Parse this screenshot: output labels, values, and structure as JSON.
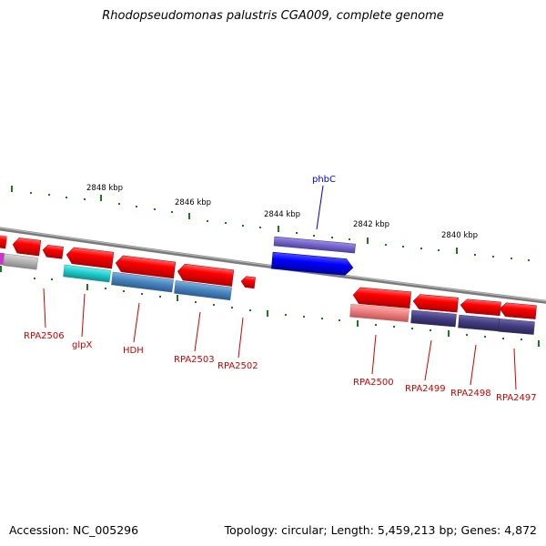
{
  "title": "Rhodopseudomonas palustris CGA009, complete genome",
  "footer": {
    "accession": "Accession: NC_005296",
    "stats": "Topology: circular; Length: 5,459,213 bp; Genes: 4,872"
  },
  "colors": {
    "backbone": "#808080",
    "forward_label": "#0000cc",
    "reverse_label": "#cc0000",
    "tick": "#1a7a1a",
    "red_gene": "#ff0000",
    "blue_gene": "#0000ff",
    "lavender_gene": "#7766cc",
    "steelblue_gene": "#4a86c0",
    "navy_gene": "#443d80",
    "cyan_gene": "#22cccc",
    "salmon_gene": "#f08080",
    "grey_gene": "#b0b0b0",
    "magenta_gene": "#cc33cc"
  },
  "scale_labels": [
    {
      "id": "2848",
      "text": "2848 kbp"
    },
    {
      "id": "2846",
      "text": "2846 kbp"
    },
    {
      "id": "2844",
      "text": "2844 kbp"
    },
    {
      "id": "2842",
      "text": "2842 kbp"
    },
    {
      "id": "2840",
      "text": "2840 kbp"
    }
  ],
  "gene_labels": [
    {
      "id": "phbC",
      "text": "phbC"
    },
    {
      "id": "RPA2506",
      "text": "RPA2506"
    },
    {
      "id": "glpX",
      "text": "glpX"
    },
    {
      "id": "HDH",
      "text": "HDH"
    },
    {
      "id": "RPA2503",
      "text": "RPA2503"
    },
    {
      "id": "RPA2502",
      "text": "RPA2502"
    },
    {
      "id": "RPA2500",
      "text": "RPA2500"
    },
    {
      "id": "RPA2499",
      "text": "RPA2499"
    },
    {
      "id": "RPA2498",
      "text": "RPA2498"
    },
    {
      "id": "RPA2497",
      "text": "RPA2497"
    }
  ]
}
